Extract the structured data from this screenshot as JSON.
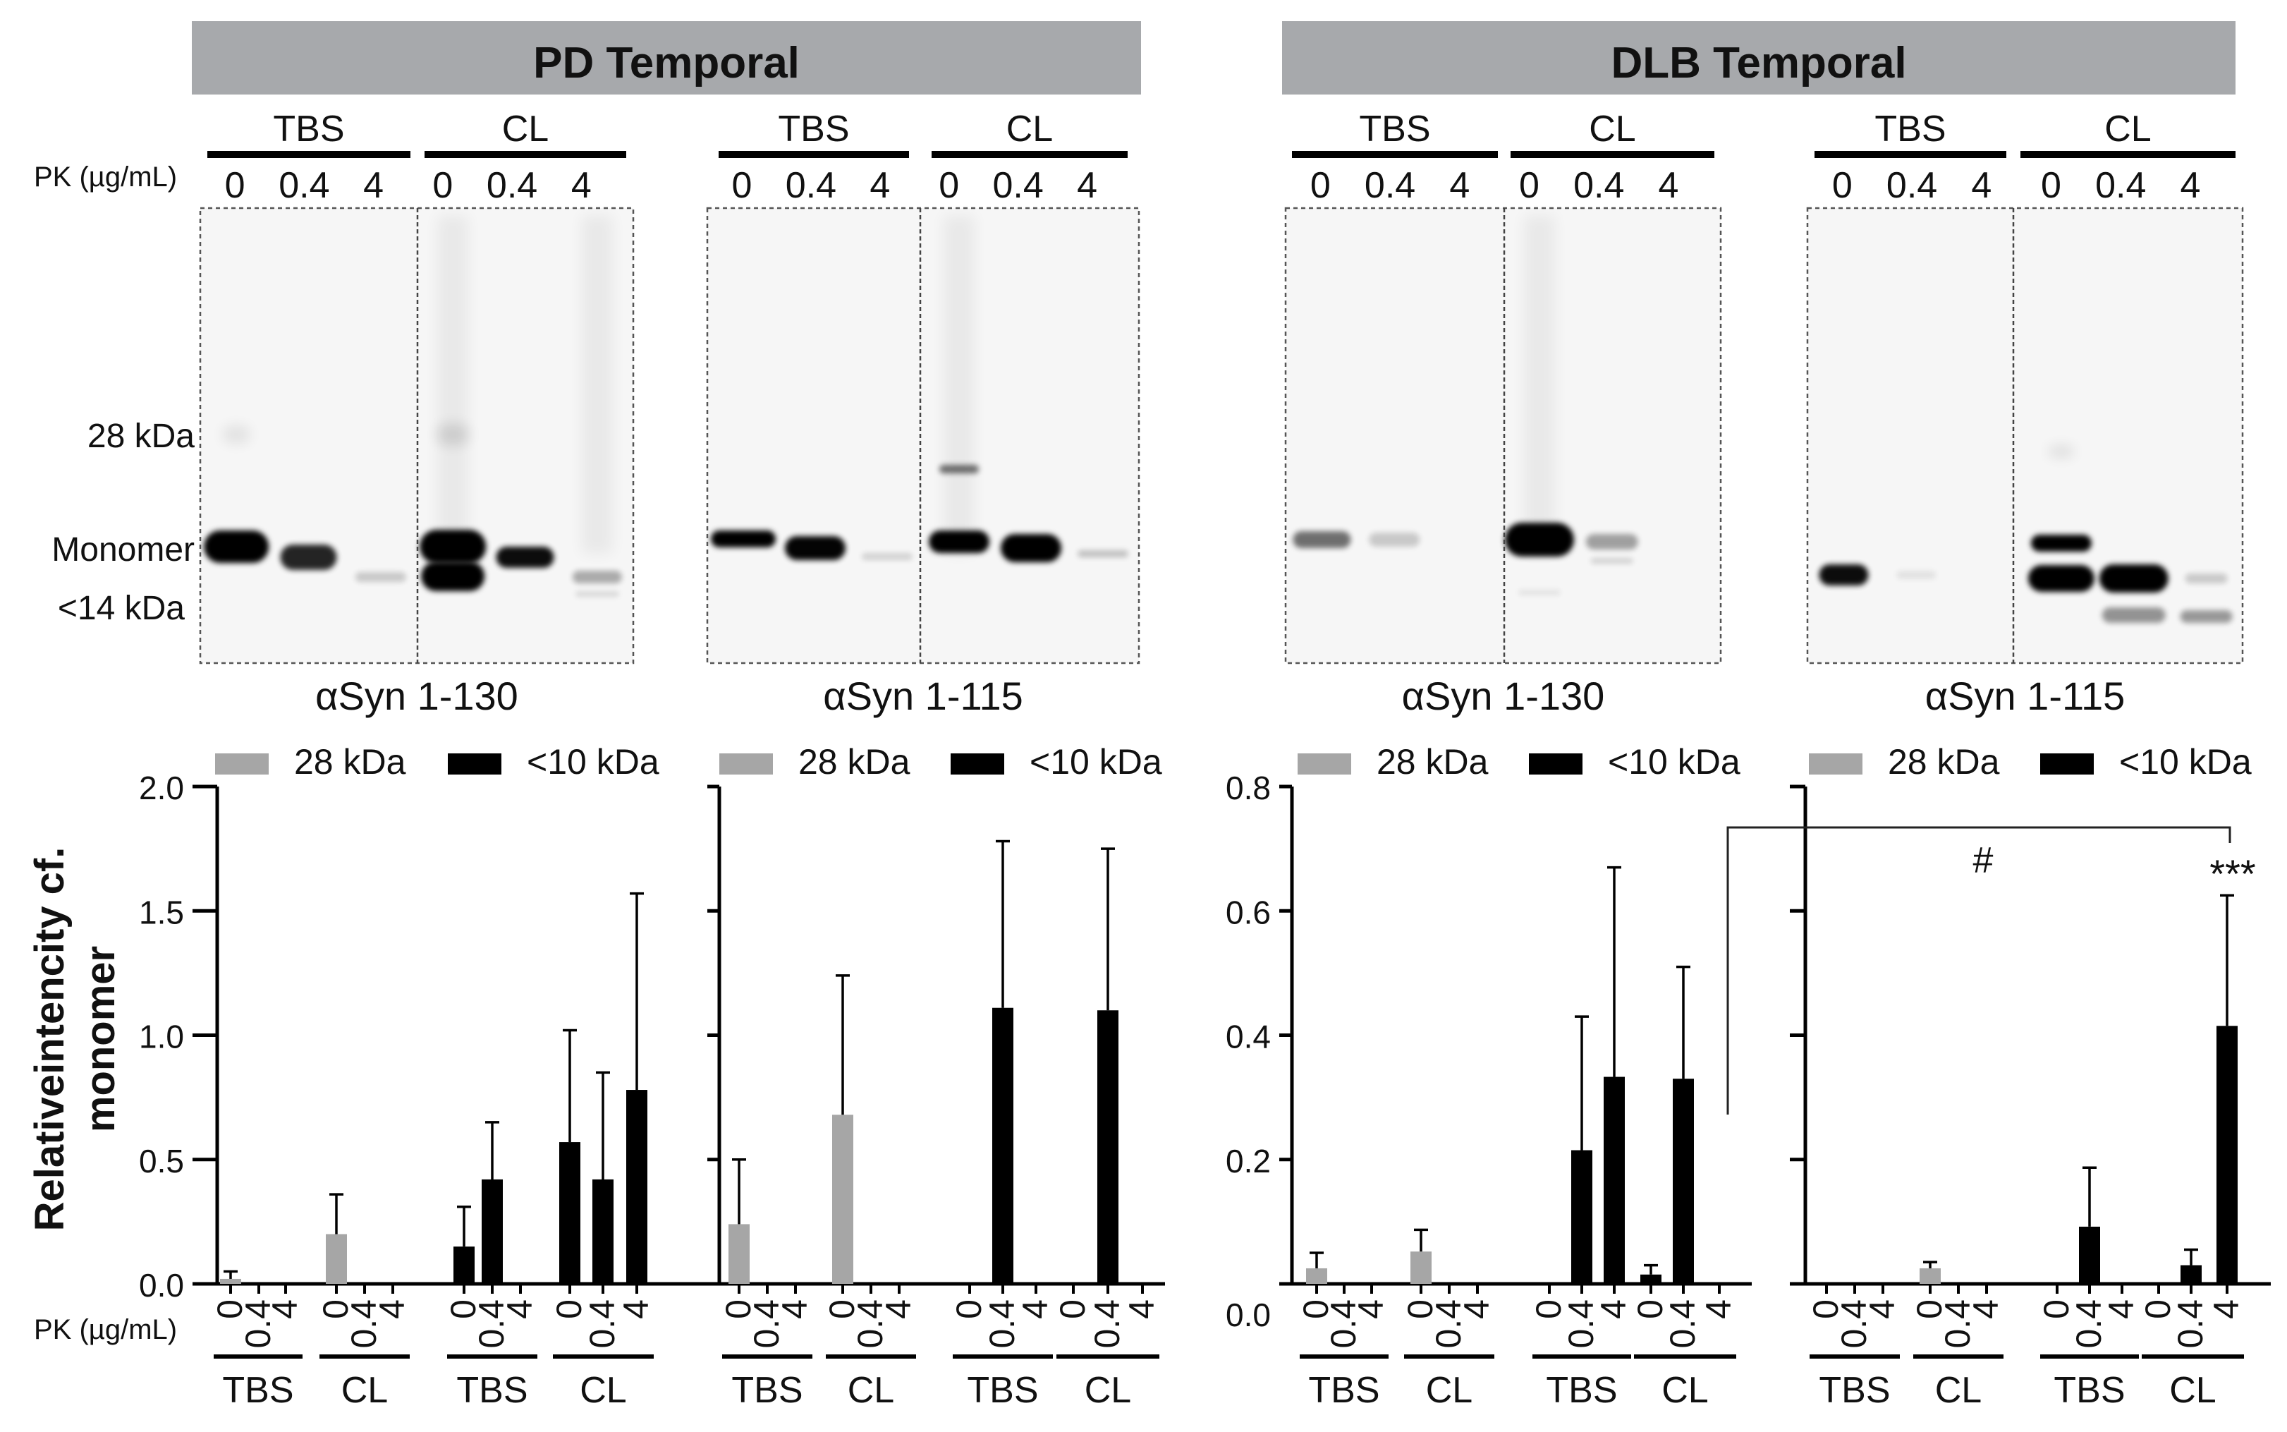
{
  "panels": [
    {
      "title": "PD Temporal",
      "blots": [
        {
          "groups": [
            "TBS",
            "CL"
          ],
          "lanes": [
            "0",
            "0.4",
            "4",
            "0",
            "0.4",
            "4"
          ],
          "antibody": "αSyn 1-130"
        },
        {
          "groups": [
            "TBS",
            "CL"
          ],
          "lanes": [
            "0",
            "0.4",
            "4",
            "0",
            "0.4",
            "4"
          ],
          "antibody": "αSyn 1-115"
        }
      ]
    },
    {
      "title": "DLB Temporal",
      "blots": [
        {
          "groups": [
            "TBS",
            "CL"
          ],
          "lanes": [
            "0",
            "0.4",
            "4",
            "0",
            "0.4",
            "4"
          ],
          "antibody": "αSyn 1-130"
        },
        {
          "groups": [
            "TBS",
            "CL"
          ],
          "lanes": [
            "0",
            "0.4",
            "4",
            "0",
            "0.4",
            "4"
          ],
          "antibody": "αSyn 1-115"
        }
      ]
    }
  ],
  "blot_labels": {
    "pk": "PK (µg/mL)",
    "kda28": "28 kDa",
    "monomer": "Monomer",
    "kda14": "<14 kDa"
  },
  "ylabel_line1": "Relativeintencity cf.",
  "ylabel_line2": "monomer",
  "pk_label": "PK (µg/mL)",
  "colors": {
    "banner": "#a7a9ac",
    "gray_bar": "#a6a6a6",
    "black_bar": "#000000"
  },
  "legend": [
    "28 kDa",
    "<10 kDa"
  ],
  "annotations": {
    "hash": "#",
    "stars": "***"
  },
  "chart_data": [
    {
      "type": "bar",
      "panel": "PD Temporal αSyn 1-130",
      "groups": [
        "TBS",
        "CL",
        "TBS",
        "CL"
      ],
      "categories": [
        "0",
        "0.4",
        "4",
        "0",
        "0.4",
        "4",
        "0",
        "0.4",
        "4",
        "0",
        "0.4",
        "4"
      ],
      "series": [
        {
          "name": "28 kDa",
          "values": [
            0.02,
            0,
            0,
            0.2,
            0,
            0,
            null,
            null,
            null,
            null,
            null,
            null
          ],
          "errors": [
            0.03,
            0,
            0,
            0.16,
            0,
            0,
            null,
            null,
            null,
            null,
            null,
            null
          ]
        },
        {
          "name": "<10 kDa",
          "values": [
            null,
            null,
            null,
            null,
            null,
            null,
            0.15,
            0.42,
            0,
            0.57,
            0.42,
            0.78
          ],
          "errors": [
            null,
            null,
            null,
            null,
            null,
            null,
            0.16,
            0.23,
            0,
            0.45,
            0.43,
            0.79
          ]
        }
      ],
      "ylim": [
        0,
        2.0
      ],
      "yticks": [
        "0.0",
        "0.5",
        "1.0",
        "1.5",
        "2.0"
      ]
    },
    {
      "type": "bar",
      "panel": "PD Temporal αSyn 1-115",
      "groups": [
        "TBS",
        "CL",
        "TBS",
        "CL"
      ],
      "categories": [
        "0",
        "0.4",
        "4",
        "0",
        "0.4",
        "4",
        "0",
        "0.4",
        "4",
        "0",
        "0.4",
        "4"
      ],
      "series": [
        {
          "name": "28 kDa",
          "values": [
            0.24,
            0,
            0,
            0.68,
            0,
            0,
            null,
            null,
            null,
            null,
            null,
            null
          ],
          "errors": [
            0.26,
            0,
            0,
            0.56,
            0,
            0,
            null,
            null,
            null,
            null,
            null,
            null
          ]
        },
        {
          "name": "<10 kDa",
          "values": [
            null,
            null,
            null,
            null,
            null,
            null,
            0,
            1.11,
            0,
            0,
            1.1,
            0
          ],
          "errors": [
            null,
            null,
            null,
            null,
            null,
            null,
            0,
            0.67,
            0,
            0,
            0.65,
            0
          ]
        }
      ],
      "ylim": [
        0,
        2.0
      ],
      "yticks": []
    },
    {
      "type": "bar",
      "panel": "DLB Temporal αSyn 1-130",
      "groups": [
        "TBS",
        "CL",
        "TBS",
        "CL"
      ],
      "categories": [
        "0",
        "0.4",
        "4",
        "0",
        "0.4",
        "4",
        "0",
        "0.4",
        "4",
        "0",
        "0.4",
        "4"
      ],
      "series": [
        {
          "name": "28 kDa",
          "values": [
            0.025,
            0,
            0,
            0.052,
            0,
            0,
            null,
            null,
            null,
            null,
            null,
            null
          ],
          "errors": [
            0.025,
            0,
            0,
            0.035,
            0,
            0,
            null,
            null,
            null,
            null,
            null,
            null
          ]
        },
        {
          "name": "<10 kDa",
          "values": [
            null,
            null,
            null,
            null,
            null,
            null,
            0,
            0.215,
            0.333,
            0.015,
            0.33,
            0
          ],
          "errors": [
            null,
            null,
            null,
            null,
            null,
            null,
            0,
            0.215,
            0.337,
            0.015,
            0.18,
            0
          ]
        }
      ],
      "ylim": [
        0,
        0.8
      ],
      "yticks": [
        "0.0",
        "0.2",
        "0.4",
        "0.6",
        "0.8"
      ]
    },
    {
      "type": "bar",
      "panel": "DLB Temporal αSyn 1-115",
      "groups": [
        "TBS",
        "CL",
        "TBS",
        "CL"
      ],
      "categories": [
        "0",
        "0.4",
        "4",
        "0",
        "0.4",
        "4",
        "0",
        "0.4",
        "4",
        "0",
        "0.4",
        "4"
      ],
      "series": [
        {
          "name": "28 kDa",
          "values": [
            0,
            0,
            0,
            0.025,
            0,
            0,
            null,
            null,
            null,
            null,
            null,
            null
          ],
          "errors": [
            0,
            0,
            0,
            0.01,
            0,
            0,
            null,
            null,
            null,
            null,
            null,
            null
          ]
        },
        {
          "name": "<10 kDa",
          "values": [
            null,
            null,
            null,
            null,
            null,
            null,
            0,
            0.092,
            0,
            0,
            0.03,
            0.415
          ],
          "errors": [
            null,
            null,
            null,
            null,
            null,
            null,
            0,
            0.095,
            0,
            0,
            0.025,
            0.21
          ]
        }
      ],
      "ylim": [
        0,
        0.8
      ],
      "yticks": []
    }
  ]
}
